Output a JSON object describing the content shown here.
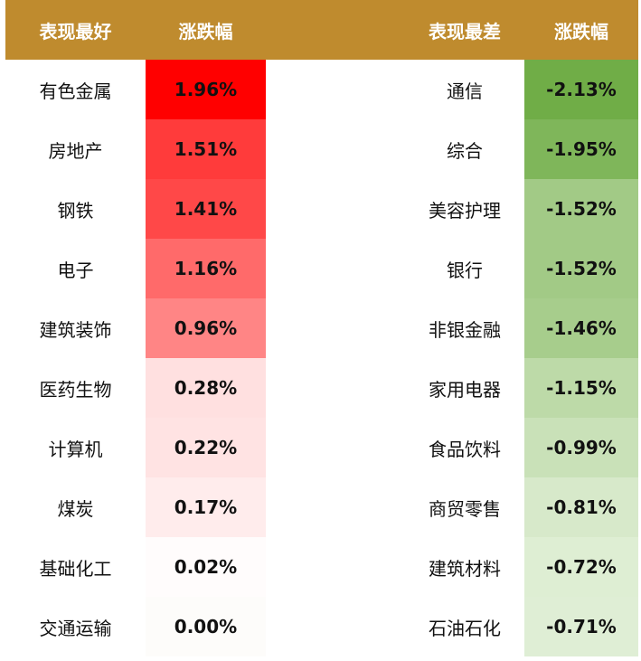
{
  "headers": {
    "best_title": "表现最好",
    "best_change": "涨跌幅",
    "worst_title": "表现最差",
    "worst_change": "涨跌幅"
  },
  "colors": {
    "header_bg": "#bf8b2e"
  },
  "best": [
    {
      "name": "有色金属",
      "change": "1.96%",
      "color": "#ff0000"
    },
    {
      "name": "房地产",
      "change": "1.51%",
      "color": "#ff3b3b"
    },
    {
      "name": "钢铁",
      "change": "1.41%",
      "color": "#ff4848"
    },
    {
      "name": "电子",
      "change": "1.16%",
      "color": "#ff6a6a"
    },
    {
      "name": "建筑装饰",
      "change": "0.96%",
      "color": "#ff8585"
    },
    {
      "name": "医药生物",
      "change": "0.28%",
      "color": "#ffe0e0"
    },
    {
      "name": "计算机",
      "change": "0.22%",
      "color": "#ffe3e3"
    },
    {
      "name": "煤炭",
      "change": "0.17%",
      "color": "#ffecec"
    },
    {
      "name": "基础化工",
      "change": "0.02%",
      "color": "#fffcfc"
    },
    {
      "name": "交通运输",
      "change": "0.00%",
      "color": "#fdfcfa"
    }
  ],
  "worst": [
    {
      "name": "通信",
      "change": "-2.13%",
      "color": "#70ad47"
    },
    {
      "name": "综合",
      "change": "-1.95%",
      "color": "#7fb65a"
    },
    {
      "name": "美容护理",
      "change": "-1.52%",
      "color": "#a2ca86"
    },
    {
      "name": "银行",
      "change": "-1.52%",
      "color": "#a2ca86"
    },
    {
      "name": "非银金融",
      "change": "-1.46%",
      "color": "#a7cd8c"
    },
    {
      "name": "家用电器",
      "change": "-1.15%",
      "color": "#bddaa8"
    },
    {
      "name": "食品饮料",
      "change": "-0.99%",
      "color": "#c9e1b8"
    },
    {
      "name": "商贸零售",
      "change": "-0.81%",
      "color": "#d7e9ca"
    },
    {
      "name": "建筑材料",
      "change": "-0.72%",
      "color": "#deeed3"
    },
    {
      "name": "石油石化",
      "change": "-0.71%",
      "color": "#dfeed5"
    }
  ]
}
